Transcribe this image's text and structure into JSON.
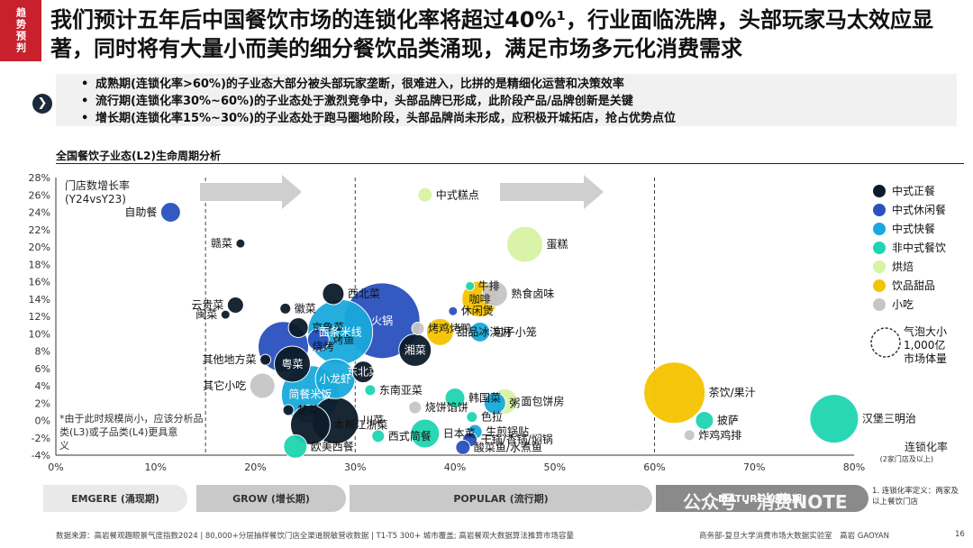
{
  "tag": "趋势预判",
  "headline": "我们预计五年后中国餐饮市场的连锁化率将超过40%¹，行业面临洗牌，头部玩家马太效应显著，同时将有大量小而美的细分餐饮品类涌现，满足市场多元化消费需求",
  "bullets": [
    "成熟期(连锁化率>60%)的子业态大部分被头部玩家垄断，很难进入，比拼的是精细化运营和决策效率",
    "流行期(连锁化率30%~60%)的子业态处于激烈竞争中，头部品牌已形成，此阶段产品/品牌创新是关键",
    "增长期(连锁化率15%~30%)的子业态处于跑马圈地阶段，头部品牌尚未形成，应积极开城拓店，抢占优势点位"
  ],
  "chart_title": "全国餐饮子业态(L2)生命周期分析",
  "chart_data": {
    "type": "scatter",
    "ylabel": "门店数增长率\n(Y24vsY23)",
    "xlabel": "连锁化率",
    "xlabel_note": "(2家门店及以上)",
    "xlim": [
      0,
      80
    ],
    "ylim": [
      -4,
      28
    ],
    "xticks": [
      "0%",
      "10%",
      "20%",
      "30%",
      "40%",
      "50%",
      "60%",
      "70%",
      "80%"
    ],
    "yticks": [
      "-4%",
      "-2%",
      "0%",
      "2%",
      "4%",
      "6%",
      "8%",
      "10%",
      "12%",
      "14%",
      "16%",
      "18%",
      "20%",
      "22%",
      "24%",
      "26%",
      "28%"
    ],
    "stage_dividers": [
      15,
      30,
      60
    ],
    "categories": [
      {
        "name": "中式正餐",
        "color": "#0d1b2a"
      },
      {
        "name": "中式休闲餐",
        "color": "#2a52be"
      },
      {
        "name": "中式快餐",
        "color": "#19a9dc"
      },
      {
        "name": "非中式餐饮",
        "color": "#1fd5b2"
      },
      {
        "name": "烘焙",
        "color": "#d7f3a4"
      },
      {
        "name": "饮品甜品",
        "color": "#f5c400"
      },
      {
        "name": "小吃",
        "color": "#c6c6c6"
      }
    ],
    "bubble_legend_label": "气泡大小\n1,000亿\n市场体量",
    "points": [
      {
        "label": "自助餐",
        "x": 11.5,
        "y": 24,
        "cat": 1,
        "r": 11
      },
      {
        "label": "赣菜",
        "x": 18.5,
        "y": 20.4,
        "cat": 0,
        "r": 5
      },
      {
        "label": "云贵菜",
        "x": 18,
        "y": 13.3,
        "cat": 0,
        "r": 9
      },
      {
        "label": "闽菜",
        "x": 17,
        "y": 12.2,
        "cat": 0,
        "r": 5
      },
      {
        "label": "徽菜",
        "x": 23,
        "y": 12.9,
        "cat": 0,
        "r": 6
      },
      {
        "label": "京鲁菜",
        "x": 24.3,
        "y": 10.7,
        "cat": 0,
        "r": 11
      },
      {
        "label": "烤鱼",
        "x": 26.3,
        "y": 9.3,
        "cat": 1,
        "r": 12
      },
      {
        "label": "西北菜",
        "x": 27.8,
        "y": 14.6,
        "cat": 0,
        "r": 12
      },
      {
        "label": "烧烤",
        "x": 22.8,
        "y": 8.5,
        "cat": 1,
        "r": 28
      },
      {
        "label": "面条米线",
        "x": 28.5,
        "y": 10.2,
        "cat": 2,
        "r": 36,
        "inner": true
      },
      {
        "label": "火锅",
        "x": 32.7,
        "y": 11.5,
        "cat": 1,
        "r": 42,
        "inner": true
      },
      {
        "label": "烤鸡烤鸭",
        "x": 36.3,
        "y": 10.6,
        "cat": 6,
        "r": 7
      },
      {
        "label": "甜品冰淇淋",
        "x": 38.5,
        "y": 10.2,
        "cat": 5,
        "r": 15
      },
      {
        "label": "湘菜",
        "x": 36,
        "y": 8.1,
        "cat": 0,
        "r": 18,
        "inner": true
      },
      {
        "label": "其他地方菜",
        "x": 21,
        "y": 7,
        "cat": 0,
        "r": 6
      },
      {
        "label": "粤菜",
        "x": 23.7,
        "y": 6.5,
        "cat": 0,
        "r": 20,
        "inner": true
      },
      {
        "label": "其它小吃",
        "x": 20.7,
        "y": 4,
        "cat": 6,
        "r": 14
      },
      {
        "label": "小龙虾",
        "x": 28,
        "y": 4.8,
        "cat": 2,
        "r": 22,
        "inner": true
      },
      {
        "label": "简餐米饭",
        "x": 25.5,
        "y": 3,
        "cat": 2,
        "r": 32,
        "inner": true
      },
      {
        "label": "东北菜",
        "x": 30.8,
        "y": 5.6,
        "cat": 0,
        "r": 12,
        "inner": true
      },
      {
        "label": "东南亚菜",
        "x": 31.5,
        "y": 3.5,
        "cat": 3,
        "r": 6
      },
      {
        "label": "楚菜",
        "x": 23.3,
        "y": 1.2,
        "cat": 0,
        "r": 6
      },
      {
        "label": "本帮江浙菜",
        "x": 25.5,
        "y": -0.5,
        "cat": 0,
        "r": 22
      },
      {
        "label": "川菜",
        "x": 28,
        "y": 0,
        "cat": 0,
        "r": 26
      },
      {
        "label": "欧美西餐",
        "x": 24,
        "y": -3,
        "cat": 3,
        "r": 13
      },
      {
        "label": "中式糕点",
        "x": 37,
        "y": 26,
        "cat": 4,
        "r": 8
      },
      {
        "label": "牛排",
        "x": 41.5,
        "y": 15.5,
        "cat": 3,
        "r": 5
      },
      {
        "label": "蛋糕",
        "x": 47,
        "y": 20.3,
        "cat": 4,
        "r": 20
      },
      {
        "label": "休闲煲",
        "x": 39.8,
        "y": 12.6,
        "cat": 1,
        "r": 5
      },
      {
        "label": "熟食卤味",
        "x": 44,
        "y": 14.6,
        "cat": 6,
        "r": 14
      },
      {
        "label": "咖啡",
        "x": 42.5,
        "y": 14,
        "cat": 5,
        "r": 20,
        "inner": true
      },
      {
        "label": "包子小笼",
        "x": 42.5,
        "y": 10.2,
        "cat": 2,
        "r": 11
      },
      {
        "label": "韩国菜",
        "x": 40,
        "y": 2.6,
        "cat": 3,
        "r": 11
      },
      {
        "label": "色拉",
        "x": 41.7,
        "y": 0.4,
        "cat": 3,
        "r": 6
      },
      {
        "label": "粥",
        "x": 44,
        "y": 2,
        "cat": 2,
        "r": 12
      },
      {
        "label": "面包饼房",
        "x": 45,
        "y": 2.2,
        "cat": 4,
        "r": 14
      },
      {
        "label": "烧饼馅饼",
        "x": 36,
        "y": 1.5,
        "cat": 6,
        "r": 7
      },
      {
        "label": "日本菜",
        "x": 37,
        "y": -1.5,
        "cat": 3,
        "r": 16
      },
      {
        "label": "西式简餐",
        "x": 32.3,
        "y": -1.8,
        "cat": 3,
        "r": 7
      },
      {
        "label": "生煎锅贴",
        "x": 42,
        "y": -1.3,
        "cat": 2,
        "r": 8
      },
      {
        "label": "干锅/香锅/焖锅",
        "x": 41.5,
        "y": -2.2,
        "cat": 1,
        "r": 8
      },
      {
        "label": "酸菜鱼/水煮鱼",
        "x": 40.8,
        "y": -3.1,
        "cat": 1,
        "r": 8
      },
      {
        "label": "茶饮/果汁",
        "x": 62,
        "y": 3.2,
        "cat": 5,
        "r": 34
      },
      {
        "label": "披萨",
        "x": 65,
        "y": 0,
        "cat": 3,
        "r": 10
      },
      {
        "label": "炸鸡鸡排",
        "x": 63.5,
        "y": -1.7,
        "cat": 6,
        "r": 6
      },
      {
        "label": "汉堡三明治",
        "x": 78,
        "y": 0.2,
        "cat": 3,
        "r": 27
      }
    ]
  },
  "note_left": "*由于此时规模尚小，应该分析品类(L3)或子品类(L4)更具意义",
  "stages": [
    "EMGERE (涌现期)",
    "GROW (增长期)",
    "POPULAR (流行期)",
    "MATURE (成熟期)"
  ],
  "note_right": "1. 连锁化率定义：两家及以上餐饮门店",
  "watermark": "公众号 · 消费NOTE",
  "footer_source": "数据来源：高岩餐观趣眼景气度指数2024 | 80,000+分层抽样餐饮门店全渠道脱敏营收数据 | T1-T5 300+ 城市覆盖; 高岩餐观大数据算法推算市场容量",
  "footer_org": "商务部-复旦大学消费市场大数据实验室　高岩 GAOYAN",
  "page_number": "16"
}
